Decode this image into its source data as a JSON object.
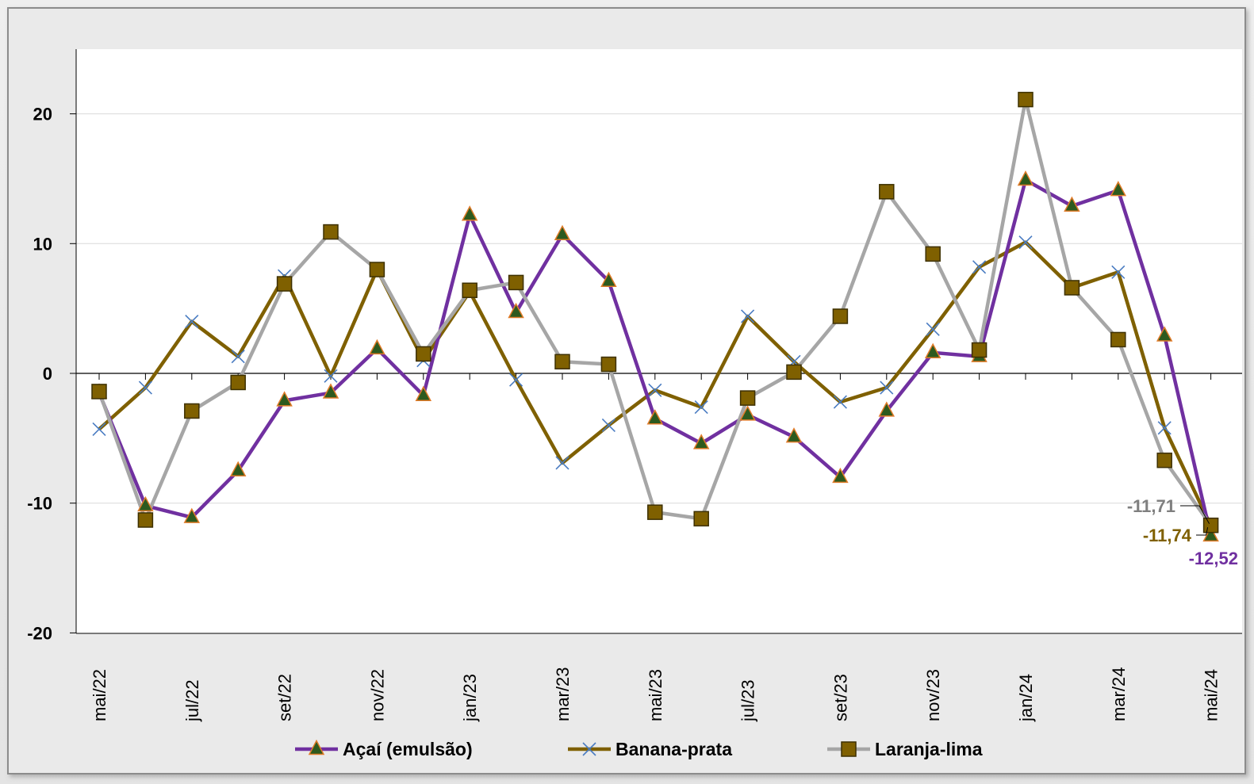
{
  "chart_data": {
    "type": "line",
    "categories": [
      "mai/22",
      "jun/22",
      "jul/22",
      "ago/22",
      "set/22",
      "out/22",
      "nov/22",
      "dez/22",
      "jan/23",
      "fev/23",
      "mar/23",
      "abr/23",
      "mai/23",
      "jun/23",
      "jul/23",
      "ago/23",
      "set/23",
      "out/23",
      "nov/23",
      "dez/23",
      "jan/24",
      "fev/24",
      "mar/24",
      "abr/24",
      "mai/24"
    ],
    "x_tick_labels": [
      "mai/22",
      "",
      "jul/22",
      "",
      "set/22",
      "",
      "nov/22",
      "",
      "jan/23",
      "",
      "mar/23",
      "",
      "mai/23",
      "",
      "jul/23",
      "",
      "set/23",
      "",
      "nov/23",
      "",
      "jan/24",
      "",
      "mar/24",
      "",
      "mai/24"
    ],
    "ylim": [
      -20,
      25
    ],
    "yticks": [
      -20,
      -10,
      0,
      10,
      20
    ],
    "ytick_labels": [
      "-20",
      "-10",
      "0",
      "10",
      "20"
    ],
    "grid": "horizontal",
    "legend_position": "bottom",
    "series": [
      {
        "name": "Açaí (emulsão)",
        "color": "#7030a0",
        "marker": "triangle",
        "marker_fill": "#2d5a1e",
        "marker_stroke": "#e07b28",
        "values": [
          -1.5,
          -10.2,
          -11.1,
          -7.5,
          -2.1,
          -1.5,
          1.9,
          -1.7,
          12.2,
          4.7,
          10.7,
          7.1,
          -3.5,
          -5.4,
          -3.2,
          -4.9,
          -8.0,
          -2.9,
          1.6,
          1.3,
          14.9,
          12.9,
          14.1,
          2.9,
          -12.52
        ]
      },
      {
        "name": "Banana-prata",
        "color": "#7f6000",
        "marker": "x",
        "marker_stroke": "#4a7cc2",
        "values": [
          -4.3,
          -1.1,
          4.0,
          1.3,
          7.5,
          -0.2,
          8.0,
          1.0,
          6.3,
          -0.5,
          -6.9,
          -4.0,
          -1.3,
          -2.6,
          4.4,
          0.9,
          -2.2,
          -1.1,
          3.4,
          8.2,
          10.1,
          6.6,
          7.8,
          -4.2,
          -11.74
        ]
      },
      {
        "name": "Laranja-lima",
        "color": "#a6a6a6",
        "marker": "square",
        "marker_fill": "#7f6000",
        "marker_stroke": "#3d3000",
        "values": [
          -1.4,
          -11.3,
          -2.9,
          -0.7,
          6.9,
          10.9,
          8.0,
          1.5,
          6.4,
          7.0,
          0.9,
          0.7,
          -10.7,
          -11.2,
          -1.9,
          0.1,
          4.4,
          14.0,
          9.2,
          1.8,
          21.1,
          6.6,
          2.6,
          -6.7,
          -11.71
        ]
      }
    ],
    "annotations": [
      {
        "text": "-11,71",
        "series": "Laranja-lima",
        "color": "#7f7f7f"
      },
      {
        "text": "-11,74",
        "series": "Banana-prata",
        "color": "#7f6000"
      },
      {
        "text": "-12,52",
        "series": "Açaí (emulsão)",
        "color": "#7030a0"
      }
    ]
  }
}
